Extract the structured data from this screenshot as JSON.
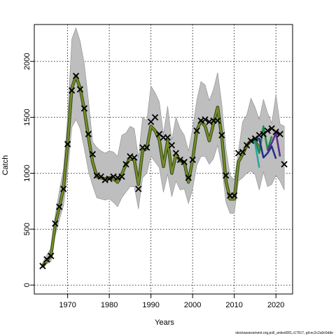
{
  "chart_data": {
    "type": "line",
    "xlabel": "Years",
    "ylabel": "Catch",
    "xlim": [
      1962,
      2024
    ],
    "ylim": [
      -80,
      2330
    ],
    "x_ticks": [
      1970,
      1980,
      1990,
      2000,
      2010,
      2020
    ],
    "y_ticks": [
      0,
      500,
      1000,
      1500,
      2000
    ],
    "grid": true,
    "grid_style": "dotted",
    "footnote": "stockassessment.org,poll_antest001,r17917, git:ec2c2a0c6dde",
    "colors": {
      "band": "#bebebe",
      "band_edge": "#8c8c8c",
      "fit": "#7a8c2a",
      "fit_dark": "#2e4a18",
      "observed": "#000000",
      "retro_teal": "#2aa3a3",
      "retro_green": "#1f8a4a",
      "retro_navy": "#1f2f8c",
      "retro_purple": "#5a2a8c"
    },
    "observed": {
      "marker": "x",
      "x": [
        1964,
        1965,
        1966,
        1967,
        1968,
        1969,
        1970,
        1971,
        1972,
        1973,
        1974,
        1975,
        1976,
        1977,
        1978,
        1979,
        1980,
        1981,
        1982,
        1983,
        1984,
        1985,
        1986,
        1987,
        1988,
        1989,
        1990,
        1991,
        1992,
        1993,
        1994,
        1995,
        1996,
        1997,
        1998,
        1999,
        2000,
        2001,
        2002,
        2003,
        2004,
        2005,
        2006,
        2007,
        2008,
        2009,
        2010,
        2011,
        2012,
        2013,
        2014,
        2015,
        2016,
        2017,
        2018,
        2019,
        2020,
        2021,
        2022
      ],
      "y": [
        170,
        230,
        260,
        550,
        700,
        860,
        1260,
        1740,
        1870,
        1750,
        1580,
        1350,
        1170,
        980,
        970,
        940,
        950,
        970,
        960,
        970,
        1080,
        1150,
        1140,
        860,
        1230,
        1230,
        1460,
        1500,
        1350,
        1320,
        1320,
        1250,
        1180,
        1120,
        1100,
        960,
        1120,
        1380,
        1470,
        1480,
        1460,
        1470,
        1470,
        1340,
        980,
        800,
        800,
        1180,
        1190,
        1250,
        1290,
        1310,
        1340,
        1350,
        1380,
        1400,
        1370,
        1350,
        1080
      ]
    },
    "fitted": {
      "x": [
        1964,
        1965,
        1966,
        1967,
        1968,
        1969,
        1970,
        1971,
        1972,
        1973,
        1974,
        1975,
        1976,
        1977,
        1978,
        1979,
        1980,
        1981,
        1982,
        1983,
        1984,
        1985,
        1986,
        1987,
        1988,
        1989,
        1990,
        1991,
        1992,
        1993,
        1994,
        1995,
        1996,
        1997,
        1998,
        1999,
        2000,
        2001,
        2002,
        2003,
        2004,
        2005,
        2006,
        2007,
        2008,
        2009,
        2010,
        2011,
        2012,
        2013,
        2014,
        2015,
        2016
      ],
      "y": [
        170,
        220,
        260,
        540,
        690,
        870,
        1260,
        1760,
        1870,
        1760,
        1570,
        1320,
        1100,
        970,
        960,
        950,
        960,
        950,
        920,
        990,
        1080,
        1130,
        1120,
        900,
        1200,
        1220,
        1420,
        1380,
        1300,
        1060,
        1290,
        1000,
        1170,
        1110,
        1100,
        920,
        1120,
        1380,
        1470,
        1420,
        1290,
        1440,
        1590,
        1330,
        930,
        770,
        770,
        1100,
        1170,
        1250,
        1290,
        1280,
        1230
      ]
    },
    "band": {
      "x": [
        1964,
        1965,
        1966,
        1967,
        1968,
        1969,
        1970,
        1971,
        1972,
        1973,
        1974,
        1975,
        1976,
        1977,
        1978,
        1979,
        1980,
        1981,
        1982,
        1983,
        1984,
        1985,
        1986,
        1987,
        1988,
        1989,
        1990,
        1991,
        1992,
        1993,
        1994,
        1995,
        1996,
        1997,
        1998,
        1999,
        2000,
        2001,
        2002,
        2003,
        2004,
        2005,
        2006,
        2007,
        2008,
        2009,
        2010,
        2011,
        2012,
        2013,
        2014,
        2015,
        2016,
        2017,
        2018,
        2019,
        2020,
        2021,
        2022
      ],
      "upper": [
        200,
        270,
        330,
        620,
        840,
        1040,
        1500,
        2200,
        2300,
        2180,
        1980,
        1650,
        1280,
        1230,
        1200,
        1180,
        1200,
        1190,
        1150,
        1340,
        1360,
        1420,
        1400,
        1140,
        1500,
        1470,
        1780,
        1720,
        1640,
        1350,
        1600,
        1300,
        1500,
        1400,
        1340,
        1200,
        1400,
        1650,
        1820,
        1790,
        1650,
        1750,
        1900,
        1620,
        1220,
        980,
        940,
        1200,
        1460,
        1520,
        1670,
        1590,
        1480,
        1660,
        1540,
        1450,
        1700,
        1440,
        1420
      ],
      "lower": [
        150,
        190,
        210,
        440,
        580,
        710,
        1000,
        1410,
        1480,
        1400,
        1220,
        1020,
        890,
        780,
        770,
        760,
        770,
        740,
        700,
        780,
        830,
        880,
        880,
        680,
        960,
        1000,
        1150,
        1100,
        1050,
        830,
        990,
        790,
        930,
        850,
        860,
        730,
        860,
        1070,
        1150,
        1150,
        1080,
        1130,
        1250,
        1060,
        740,
        640,
        640,
        930,
        960,
        1000,
        1020,
        990,
        850,
        1010,
        880,
        900,
        980,
        930,
        850
      ]
    },
    "retro_series": [
      {
        "color_key": "retro_teal",
        "x": [
          2014,
          2015,
          2016
        ],
        "y": [
          1290,
          1270,
          1050
        ]
      },
      {
        "color_key": "retro_green",
        "x": [
          2014,
          2015,
          2016,
          2017,
          2018,
          2019
        ],
        "y": [
          1290,
          1300,
          1180,
          1420,
          1210,
          1330
        ]
      },
      {
        "color_key": "retro_navy",
        "x": [
          2015,
          2016,
          2017,
          2018,
          2019,
          2020
        ],
        "y": [
          1300,
          1310,
          1140,
          1180,
          1240,
          1130
        ]
      },
      {
        "color_key": "retro_purple",
        "x": [
          2018,
          2019,
          2020,
          2021
        ],
        "y": [
          1200,
          1270,
          1360,
          1150
        ]
      }
    ]
  }
}
